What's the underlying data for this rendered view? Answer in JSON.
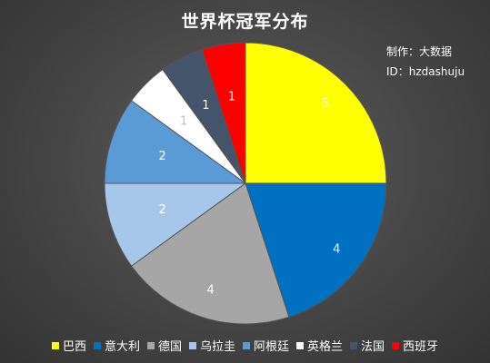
{
  "chart_data": {
    "type": "pie",
    "title": "世界杯冠军分布",
    "credit": [
      "制作：大数据",
      "ID：hzdashuju"
    ],
    "legend_position": "bottom",
    "slices": [
      {
        "label": "巴西",
        "value": 5,
        "color": "#FFFF00"
      },
      {
        "label": "意大利",
        "value": 4,
        "color": "#0070C0"
      },
      {
        "label": "德国",
        "value": 4,
        "color": "#A6A6A6"
      },
      {
        "label": "乌拉圭",
        "value": 2,
        "color": "#A7C7EA"
      },
      {
        "label": "阿根廷",
        "value": 2,
        "color": "#5B9BD5"
      },
      {
        "label": "英格兰",
        "value": 1,
        "color": "#FFFFFF"
      },
      {
        "label": "法国",
        "value": 1,
        "color": "#44546A"
      },
      {
        "label": "西班牙",
        "value": 1,
        "color": "#FF0000"
      }
    ]
  }
}
